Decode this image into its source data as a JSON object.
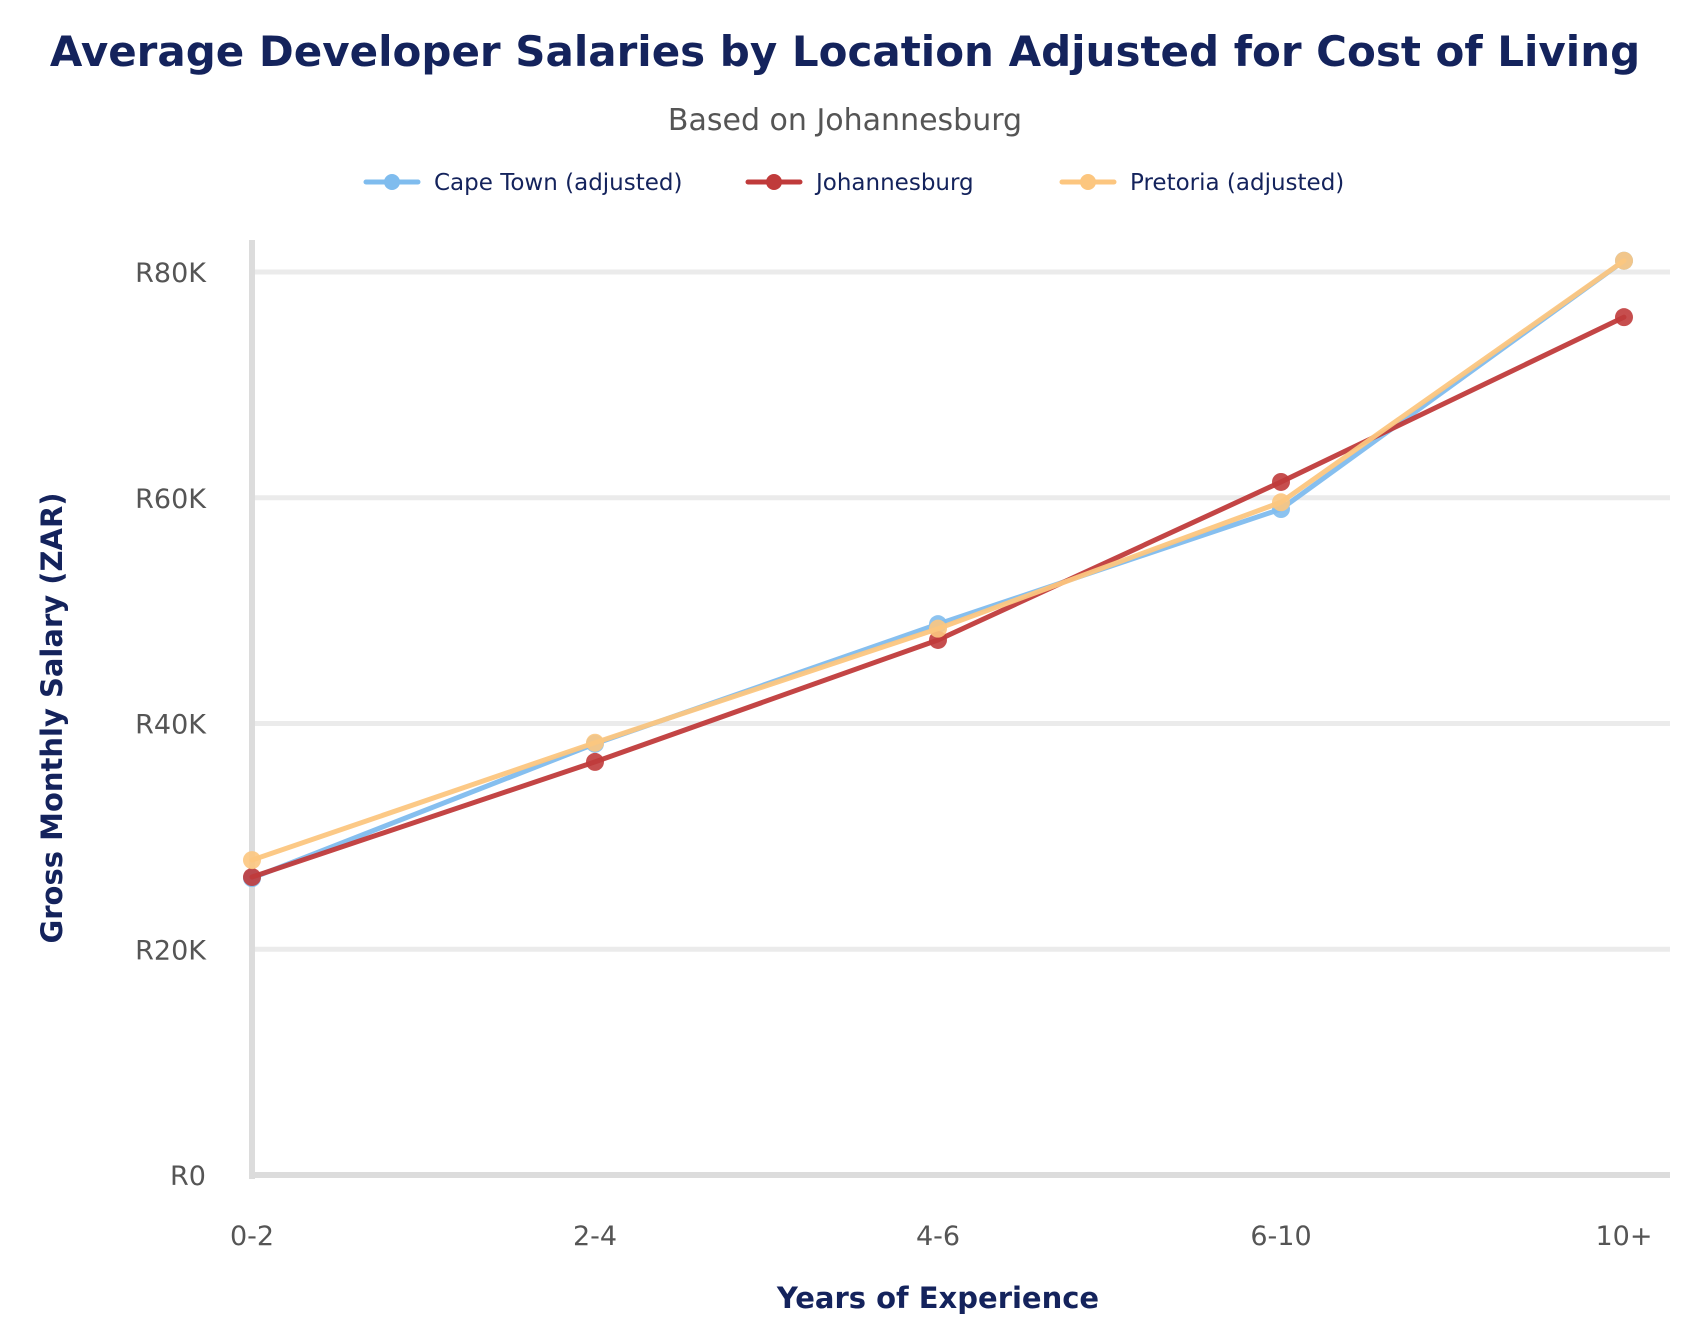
{
  "chart_data": {
    "type": "line",
    "title": "Average Developer Salaries by Location Adjusted for Cost of Living",
    "subtitle": "Based on Johannesburg",
    "xlabel": "Years of Experience",
    "ylabel": "Gross Monthly Salary (ZAR)",
    "categories": [
      "0-2",
      "2-4",
      "4-6",
      "6-10",
      "10+"
    ],
    "ylim": [
      0,
      80000
    ],
    "yticks": [
      0,
      20000,
      40000,
      60000,
      80000
    ],
    "ytick_labels": [
      "R0",
      "R20K",
      "R40K",
      "R60K",
      "R80K"
    ],
    "grid": "horizontal",
    "legend_position": "top-center",
    "series": [
      {
        "name": "Cape Town (adjusted)",
        "color": "#7fbcee",
        "values": [
          26300,
          38200,
          48800,
          59000,
          81000
        ]
      },
      {
        "name": "Johannesburg",
        "color": "#c03b3b",
        "values": [
          26400,
          36600,
          47400,
          61400,
          76000
        ]
      },
      {
        "name": "Pretoria (adjusted)",
        "color": "#fcc67f",
        "values": [
          27900,
          38300,
          48400,
          59600,
          81000
        ]
      }
    ]
  }
}
